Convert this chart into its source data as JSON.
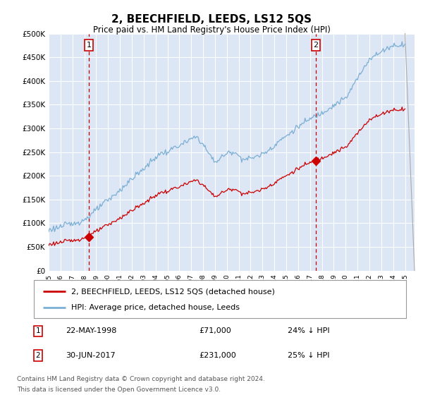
{
  "title": "2, BEECHFIELD, LEEDS, LS12 5QS",
  "subtitle": "Price paid vs. HM Land Registry's House Price Index (HPI)",
  "ylim": [
    0,
    500000
  ],
  "yticks": [
    0,
    50000,
    100000,
    150000,
    200000,
    250000,
    300000,
    350000,
    400000,
    450000,
    500000
  ],
  "ytick_labels": [
    "£0",
    "£50K",
    "£100K",
    "£150K",
    "£200K",
    "£250K",
    "£300K",
    "£350K",
    "£400K",
    "£450K",
    "£500K"
  ],
  "x_start_year": 1995,
  "x_end_year": 2025,
  "sale1_year": 1998.38,
  "sale1_price": 71000,
  "sale2_year": 2017.5,
  "sale2_price": 231000,
  "hpi_color": "#7bafd4",
  "sale_color": "#cc0000",
  "plot_bg_color": "#dce6f5",
  "grid_color": "#ffffff",
  "legend_label_sale": "2, BEECHFIELD, LEEDS, LS12 5QS (detached house)",
  "legend_label_hpi": "HPI: Average price, detached house, Leeds",
  "footer": "Contains HM Land Registry data © Crown copyright and database right 2024.\nThis data is licensed under the Open Government Licence v3.0."
}
